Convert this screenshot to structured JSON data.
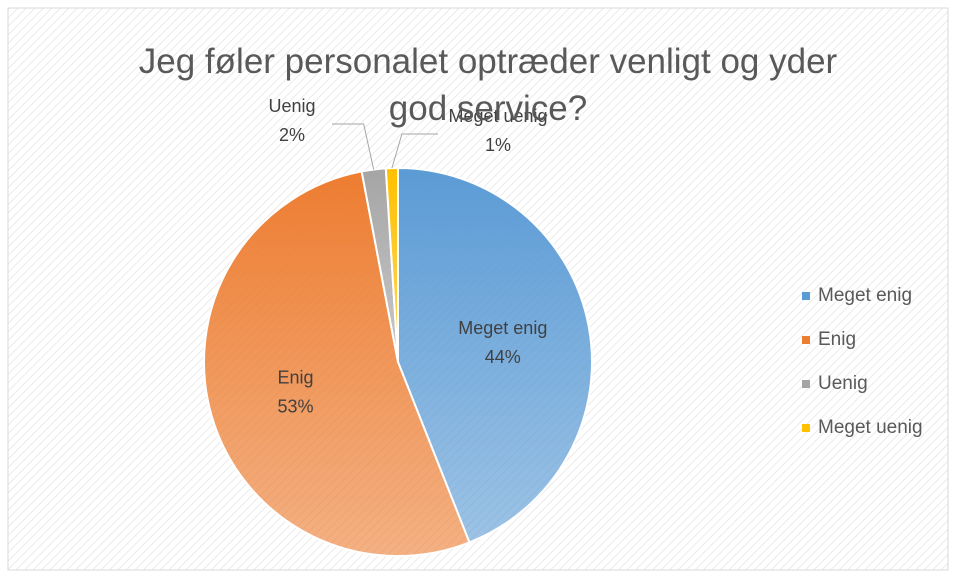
{
  "chart_data": {
    "type": "pie",
    "title": "Jeg føler personalet optræder venligt og yder god service?",
    "categories": [
      "Meget enig",
      "Enig",
      "Uenig",
      "Meget uenig"
    ],
    "values": [
      44,
      53,
      2,
      1
    ],
    "value_labels": [
      "44%",
      "53%",
      "2%",
      "1%"
    ],
    "colors": [
      "#5b9bd5",
      "#ed7d31",
      "#a5a5a5",
      "#ffc000"
    ],
    "legend": "right"
  }
}
